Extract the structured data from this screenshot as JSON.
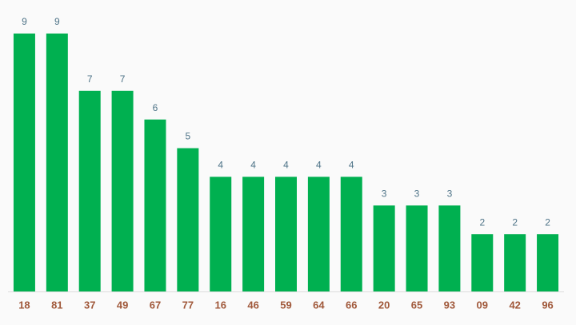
{
  "chart_data": {
    "type": "bar",
    "categories": [
      "18",
      "81",
      "37",
      "49",
      "67",
      "77",
      "16",
      "46",
      "59",
      "64",
      "66",
      "20",
      "65",
      "93",
      "09",
      "42",
      "96"
    ],
    "values": [
      9,
      9,
      7,
      7,
      6,
      5,
      4,
      4,
      4,
      4,
      4,
      3,
      3,
      3,
      2,
      2,
      2
    ],
    "color": "#00b050"
  }
}
